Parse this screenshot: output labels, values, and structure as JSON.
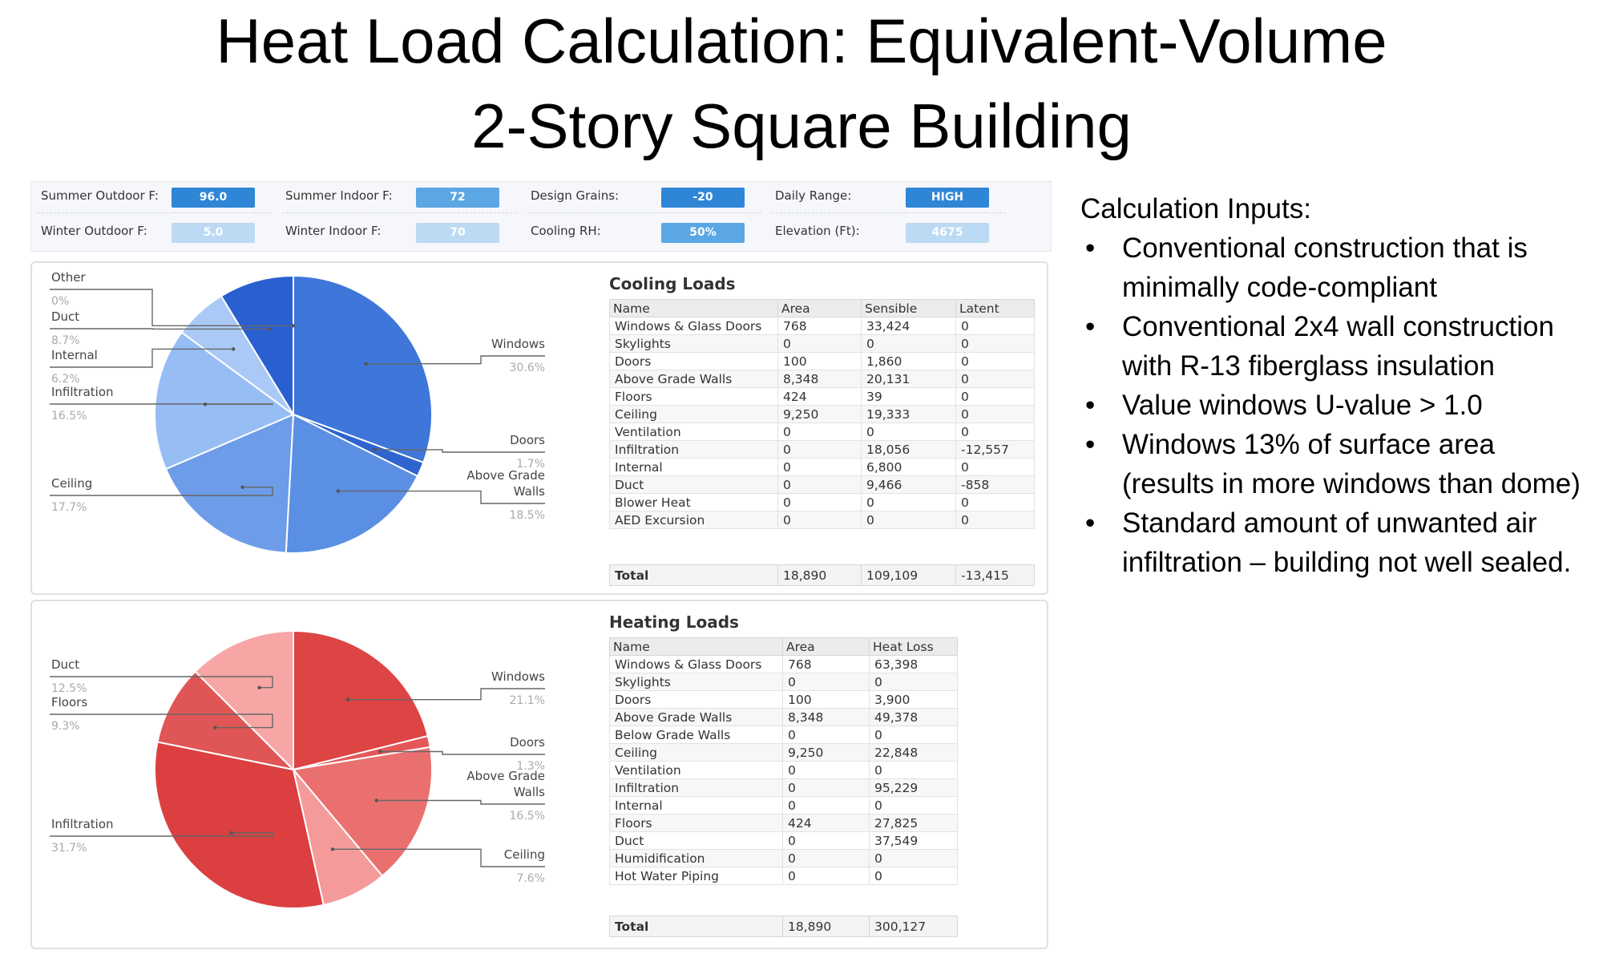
{
  "title": {
    "line1": "Heat Load Calculation: Equivalent-Volume",
    "line2": "2-Story Square Building"
  },
  "colors": {
    "param_dark": "#2f86d6",
    "param_mid": "#5aa7e4",
    "param_light": "#bcdaf3",
    "cool_slices": [
      "#3e76d9",
      "#2f64cf",
      "#5a8fe4",
      "#6d9ce8",
      "#97bdf5",
      "#aac9f7",
      "#2a5fd0",
      "#1d55c9"
    ],
    "heat_slices": [
      "#dd4444",
      "#e45858",
      "#ea7070",
      "#f59a9a",
      "#db3f3f",
      "#e05555",
      "#f7a5a5"
    ]
  },
  "params": [
    {
      "label": "Summer Outdoor F:",
      "value": "96.0",
      "tone": "dark"
    },
    {
      "label": "Summer Indoor F:",
      "value": "72",
      "tone": "mid"
    },
    {
      "label": "Design Grains:",
      "value": "-20",
      "tone": "dark"
    },
    {
      "label": "Daily Range:",
      "value": "HIGH",
      "tone": "dark"
    },
    {
      "label": "Winter Outdoor F:",
      "value": "5.0",
      "tone": "light"
    },
    {
      "label": "Winter Indoor F:",
      "value": "70",
      "tone": "light"
    },
    {
      "label": "Cooling RH:",
      "value": "50%",
      "tone": "mid"
    },
    {
      "label": "Elevation (Ft):",
      "value": "4675",
      "tone": "light"
    }
  ],
  "cooling": {
    "title": "Cooling Loads",
    "headers": [
      "Name",
      "Area",
      "Sensible",
      "Latent"
    ],
    "rows": [
      [
        "Windows & Glass Doors",
        "768",
        "33,424",
        "0"
      ],
      [
        "Skylights",
        "0",
        "0",
        "0"
      ],
      [
        "Doors",
        "100",
        "1,860",
        "0"
      ],
      [
        "Above Grade Walls",
        "8,348",
        "20,131",
        "0"
      ],
      [
        "Floors",
        "424",
        "39",
        "0"
      ],
      [
        "Ceiling",
        "9,250",
        "19,333",
        "0"
      ],
      [
        "Ventilation",
        "0",
        "0",
        "0"
      ],
      [
        "Infiltration",
        "0",
        "18,056",
        "-12,557"
      ],
      [
        "Internal",
        "0",
        "6,800",
        "0"
      ],
      [
        "Duct",
        "0",
        "9,466",
        "-858"
      ],
      [
        "Blower Heat",
        "0",
        "0",
        "0"
      ],
      [
        "AED Excursion",
        "0",
        "0",
        "0"
      ]
    ],
    "total": [
      "Total",
      "18,890",
      "109,109",
      "-13,415"
    ]
  },
  "heating": {
    "title": "Heating Loads",
    "headers": [
      "Name",
      "Area",
      "Heat Loss"
    ],
    "rows": [
      [
        "Windows & Glass Doors",
        "768",
        "63,398"
      ],
      [
        "Skylights",
        "0",
        "0"
      ],
      [
        "Doors",
        "100",
        "3,900"
      ],
      [
        "Above Grade Walls",
        "8,348",
        "49,378"
      ],
      [
        "Below Grade Walls",
        "0",
        "0"
      ],
      [
        "Ceiling",
        "9,250",
        "22,848"
      ],
      [
        "Ventilation",
        "0",
        "0"
      ],
      [
        "Infiltration",
        "0",
        "95,229"
      ],
      [
        "Internal",
        "0",
        "0"
      ],
      [
        "Floors",
        "424",
        "27,825"
      ],
      [
        "Duct",
        "0",
        "37,549"
      ],
      [
        "Humidification",
        "0",
        "0"
      ],
      [
        "Hot Water Piping",
        "0",
        "0"
      ]
    ],
    "total": [
      "Total",
      "18,890",
      "300,127"
    ]
  },
  "chart_data": [
    {
      "type": "pie",
      "categories": [
        "Windows",
        "Doors",
        "Above Grade Walls",
        "Ceiling",
        "Infiltration",
        "Internal",
        "Duct",
        "Other"
      ],
      "values": [
        30.6,
        1.7,
        18.5,
        17.7,
        16.5,
        6.2,
        8.7,
        0
      ],
      "pct_labels": [
        "30.6%",
        "1.7%",
        "18.5%",
        "17.7%",
        "16.5%",
        "6.2%",
        "8.7%",
        "0%"
      ]
    },
    {
      "type": "pie",
      "categories": [
        "Windows",
        "Doors",
        "Above Grade Walls",
        "Ceiling",
        "Infiltration",
        "Floors",
        "Duct"
      ],
      "values": [
        21.1,
        1.3,
        16.5,
        7.6,
        31.7,
        9.3,
        12.5
      ],
      "pct_labels": [
        "21.1%",
        "1.3%",
        "16.5%",
        "7.6%",
        "31.7%",
        "9.3%",
        "12.5%"
      ]
    }
  ],
  "inputs": {
    "heading": "Calculation Inputs:",
    "bullet_char": "•",
    "items": [
      "Conventional construction that is minimally code-compliant",
      "Conventional 2x4 wall construction with R-13 fiberglass insulation",
      "Value windows U-value > 1.0",
      "Windows 13% of surface area (results in more windows than dome)",
      "Standard amount of unwanted air infiltration – building not well sealed."
    ]
  }
}
